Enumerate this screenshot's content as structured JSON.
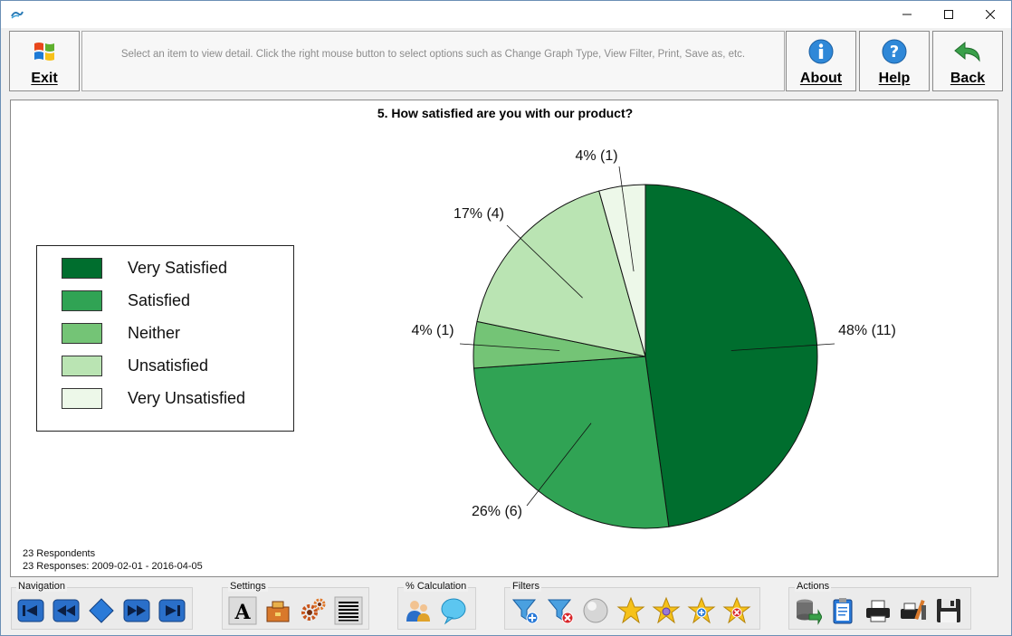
{
  "toolbar": {
    "exit_label": "Exit",
    "info_text": "Select an item to view detail. Click the right mouse button to select options such as Change Graph Type, View Filter, Print, Save as, etc.",
    "about_label": "About",
    "help_label": "Help",
    "back_label": "Back"
  },
  "chart_data": {
    "type": "pie",
    "title": "5. How satisfied are you with our product?",
    "slices": [
      {
        "label": "Very Satisfied",
        "value": 11,
        "percent": 48,
        "display": "48% (11)",
        "color": "#006e2e"
      },
      {
        "label": "Satisfied",
        "value": 6,
        "percent": 26,
        "display": "26% (6)",
        "color": "#30a354"
      },
      {
        "label": "Neither",
        "value": 1,
        "percent": 4,
        "display": "4% (1)",
        "color": "#74c476"
      },
      {
        "label": "Unsatisfied",
        "value": 4,
        "percent": 17,
        "display": "17% (4)",
        "color": "#bae4b3"
      },
      {
        "label": "Very Unsatisfied",
        "value": 1,
        "percent": 4,
        "display": "4% (1)",
        "color": "#edf8e9"
      }
    ],
    "legend_position": "left"
  },
  "footer": {
    "respondents": "23 Respondents",
    "responses": "23 Responses: 2009-02-01 - 2016-04-05"
  },
  "bottom": {
    "navigation_title": "Navigation",
    "settings_title": "Settings",
    "calc_title": "% Calculation",
    "filters_title": "Filters",
    "actions_title": "Actions"
  }
}
